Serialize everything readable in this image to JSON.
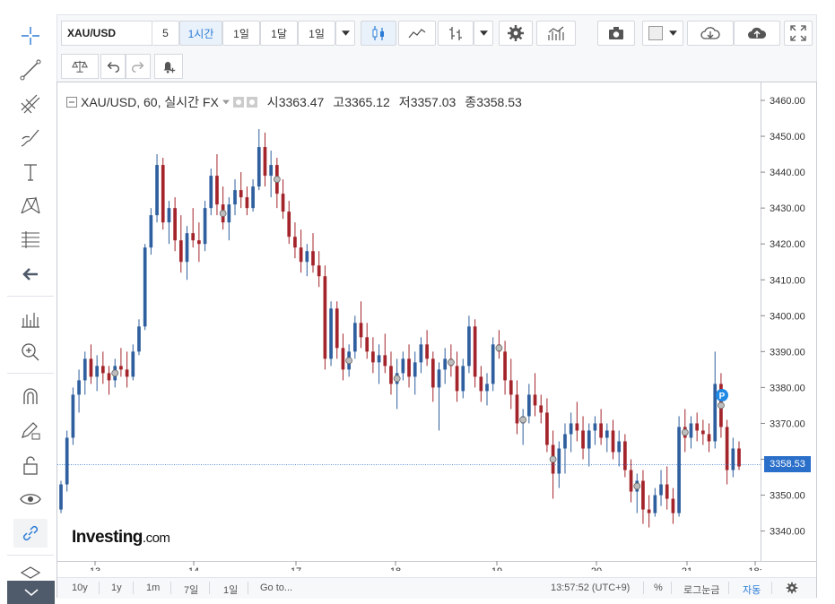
{
  "toolbar": {
    "symbol": "XAU/USD",
    "intervals": [
      "5",
      "1시간",
      "1일",
      "1달",
      "1일"
    ],
    "active_interval": "1시간"
  },
  "legend": {
    "title": "XAU/USD, 60, 실시간 FX",
    "open_label": "시",
    "open": "3363.47",
    "high_label": "고",
    "high": "3365.12",
    "low_label": "저",
    "low": "3357.03",
    "close_label": "종",
    "close": "3358.53"
  },
  "brand": {
    "logo": "Investing",
    "suffix": ".com"
  },
  "bottom": {
    "ranges": [
      "10y",
      "1y",
      "1m",
      "7일",
      "1일"
    ],
    "goto": "Go to...",
    "time": "13:57:52 (UTC+9)",
    "percent": "%",
    "log": "로그눈금",
    "auto": "자동"
  },
  "price_tag": "3358.53",
  "colors": {
    "up": "#2f5f9e",
    "down": "#a3242a",
    "accent": "#2a7bd6",
    "grid": "#eef0f3"
  },
  "chart_data": {
    "type": "candlestick",
    "y_ticks": [
      "3460.00",
      "3450.00",
      "3440.00",
      "3430.00",
      "3420.00",
      "3410.00",
      "3400.00",
      "3390.00",
      "3380.00",
      "3370.00",
      "3360.00",
      "3350.00",
      "3340.00"
    ],
    "x_ticks": [
      "13",
      "14",
      "17",
      "18",
      "19",
      "20",
      "21",
      "18:"
    ],
    "ylim": [
      3330,
      3465
    ],
    "last_price": 3358.53,
    "candles": [
      [
        3346,
        3354,
        3345,
        3353
      ],
      [
        3353,
        3368,
        3351,
        3366
      ],
      [
        3366,
        3380,
        3364,
        3378
      ],
      [
        3378,
        3385,
        3373,
        3382
      ],
      [
        3382,
        3390,
        3378,
        3388
      ],
      [
        3388,
        3392,
        3381,
        3383
      ],
      [
        3383,
        3389,
        3379,
        3386
      ],
      [
        3386,
        3390,
        3381,
        3384
      ],
      [
        3384,
        3386,
        3378,
        3382
      ],
      [
        3382,
        3388,
        3380,
        3386
      ],
      [
        3386,
        3391,
        3383,
        3385
      ],
      [
        3385,
        3390,
        3380,
        3383
      ],
      [
        3383,
        3392,
        3382,
        3390
      ],
      [
        3390,
        3399,
        3389,
        3397
      ],
      [
        3397,
        3420,
        3396,
        3419
      ],
      [
        3419,
        3430,
        3417,
        3428
      ],
      [
        3428,
        3445,
        3426,
        3442
      ],
      [
        3442,
        3444,
        3424,
        3426
      ],
      [
        3426,
        3432,
        3420,
        3430
      ],
      [
        3430,
        3433,
        3418,
        3421
      ],
      [
        3421,
        3428,
        3412,
        3415
      ],
      [
        3415,
        3425,
        3410,
        3423
      ],
      [
        3423,
        3430,
        3419,
        3421
      ],
      [
        3421,
        3426,
        3415,
        3420
      ],
      [
        3420,
        3432,
        3418,
        3430
      ],
      [
        3430,
        3441,
        3428,
        3439
      ],
      [
        3439,
        3445,
        3428,
        3431
      ],
      [
        3431,
        3436,
        3424,
        3426
      ],
      [
        3426,
        3433,
        3421,
        3431
      ],
      [
        3431,
        3438,
        3428,
        3435
      ],
      [
        3435,
        3440,
        3430,
        3433
      ],
      [
        3433,
        3436,
        3428,
        3430
      ],
      [
        3430,
        3438,
        3429,
        3436
      ],
      [
        3436,
        3452,
        3435,
        3447
      ],
      [
        3447,
        3451,
        3436,
        3439
      ],
      [
        3439,
        3446,
        3433,
        3442
      ],
      [
        3442,
        3444,
        3430,
        3434
      ],
      [
        3434,
        3438,
        3427,
        3429
      ],
      [
        3429,
        3432,
        3420,
        3422
      ],
      [
        3422,
        3426,
        3416,
        3419
      ],
      [
        3419,
        3424,
        3412,
        3415
      ],
      [
        3415,
        3420,
        3411,
        3418
      ],
      [
        3418,
        3423,
        3412,
        3414
      ],
      [
        3414,
        3418,
        3408,
        3411
      ],
      [
        3411,
        3414,
        3385,
        3388
      ],
      [
        3388,
        3404,
        3386,
        3402
      ],
      [
        3402,
        3404,
        3388,
        3391
      ],
      [
        3391,
        3395,
        3382,
        3385
      ],
      [
        3385,
        3392,
        3383,
        3390
      ],
      [
        3390,
        3400,
        3388,
        3398
      ],
      [
        3398,
        3404,
        3391,
        3394
      ],
      [
        3394,
        3398,
        3388,
        3390
      ],
      [
        3390,
        3394,
        3384,
        3387
      ],
      [
        3387,
        3392,
        3381,
        3389
      ],
      [
        3389,
        3395,
        3384,
        3386
      ],
      [
        3386,
        3390,
        3378,
        3381
      ],
      [
        3381,
        3388,
        3374,
        3384
      ],
      [
        3384,
        3390,
        3382,
        3388
      ],
      [
        3388,
        3392,
        3380,
        3383
      ],
      [
        3383,
        3390,
        3378,
        3387
      ],
      [
        3387,
        3394,
        3384,
        3392
      ],
      [
        3392,
        3396,
        3386,
        3388
      ],
      [
        3388,
        3390,
        3376,
        3380
      ],
      [
        3380,
        3387,
        3368,
        3385
      ],
      [
        3385,
        3391,
        3381,
        3388
      ],
      [
        3388,
        3392,
        3383,
        3386
      ],
      [
        3386,
        3390,
        3376,
        3379
      ],
      [
        3379,
        3388,
        3377,
        3386
      ],
      [
        3386,
        3400,
        3384,
        3397
      ],
      [
        3397,
        3399,
        3380,
        3383
      ],
      [
        3383,
        3386,
        3376,
        3379
      ],
      [
        3379,
        3384,
        3375,
        3381
      ],
      [
        3381,
        3394,
        3379,
        3392
      ],
      [
        3392,
        3396,
        3388,
        3390
      ],
      [
        3390,
        3393,
        3378,
        3382
      ],
      [
        3382,
        3388,
        3374,
        3378
      ],
      [
        3378,
        3382,
        3367,
        3370
      ],
      [
        3370,
        3374,
        3364,
        3372
      ],
      [
        3372,
        3381,
        3370,
        3378
      ],
      [
        3378,
        3384,
        3372,
        3375
      ],
      [
        3375,
        3378,
        3370,
        3373
      ],
      [
        3373,
        3377,
        3362,
        3364
      ],
      [
        3364,
        3368,
        3349,
        3356
      ],
      [
        3356,
        3365,
        3352,
        3363
      ],
      [
        3363,
        3370,
        3356,
        3367
      ],
      [
        3367,
        3373,
        3362,
        3370
      ],
      [
        3370,
        3376,
        3365,
        3368
      ],
      [
        3368,
        3372,
        3360,
        3363
      ],
      [
        3363,
        3370,
        3358,
        3368
      ],
      [
        3368,
        3372,
        3364,
        3370
      ],
      [
        3370,
        3374,
        3364,
        3366
      ],
      [
        3366,
        3370,
        3362,
        3368
      ],
      [
        3368,
        3371,
        3360,
        3362
      ],
      [
        3362,
        3368,
        3358,
        3365
      ],
      [
        3365,
        3367,
        3355,
        3357
      ],
      [
        3357,
        3360,
        3348,
        3351
      ],
      [
        3351,
        3356,
        3345,
        3354
      ],
      [
        3354,
        3357,
        3342,
        3346
      ],
      [
        3346,
        3350,
        3341,
        3345
      ],
      [
        3345,
        3352,
        3344,
        3350
      ],
      [
        3350,
        3357,
        3347,
        3353
      ],
      [
        3353,
        3358,
        3346,
        3349
      ],
      [
        3349,
        3352,
        3342,
        3345
      ],
      [
        3345,
        3372,
        3344,
        3369
      ],
      [
        3369,
        3374,
        3362,
        3366
      ],
      [
        3366,
        3372,
        3363,
        3370
      ],
      [
        3370,
        3373,
        3365,
        3368
      ],
      [
        3368,
        3371,
        3364,
        3367
      ],
      [
        3367,
        3370,
        3362,
        3365
      ],
      [
        3365,
        3390,
        3363,
        3381
      ],
      [
        3381,
        3384,
        3366,
        3369
      ],
      [
        3369,
        3371,
        3353,
        3357
      ],
      [
        3357,
        3366,
        3355,
        3363
      ],
      [
        3363,
        3365,
        3357,
        3358
      ]
    ]
  }
}
